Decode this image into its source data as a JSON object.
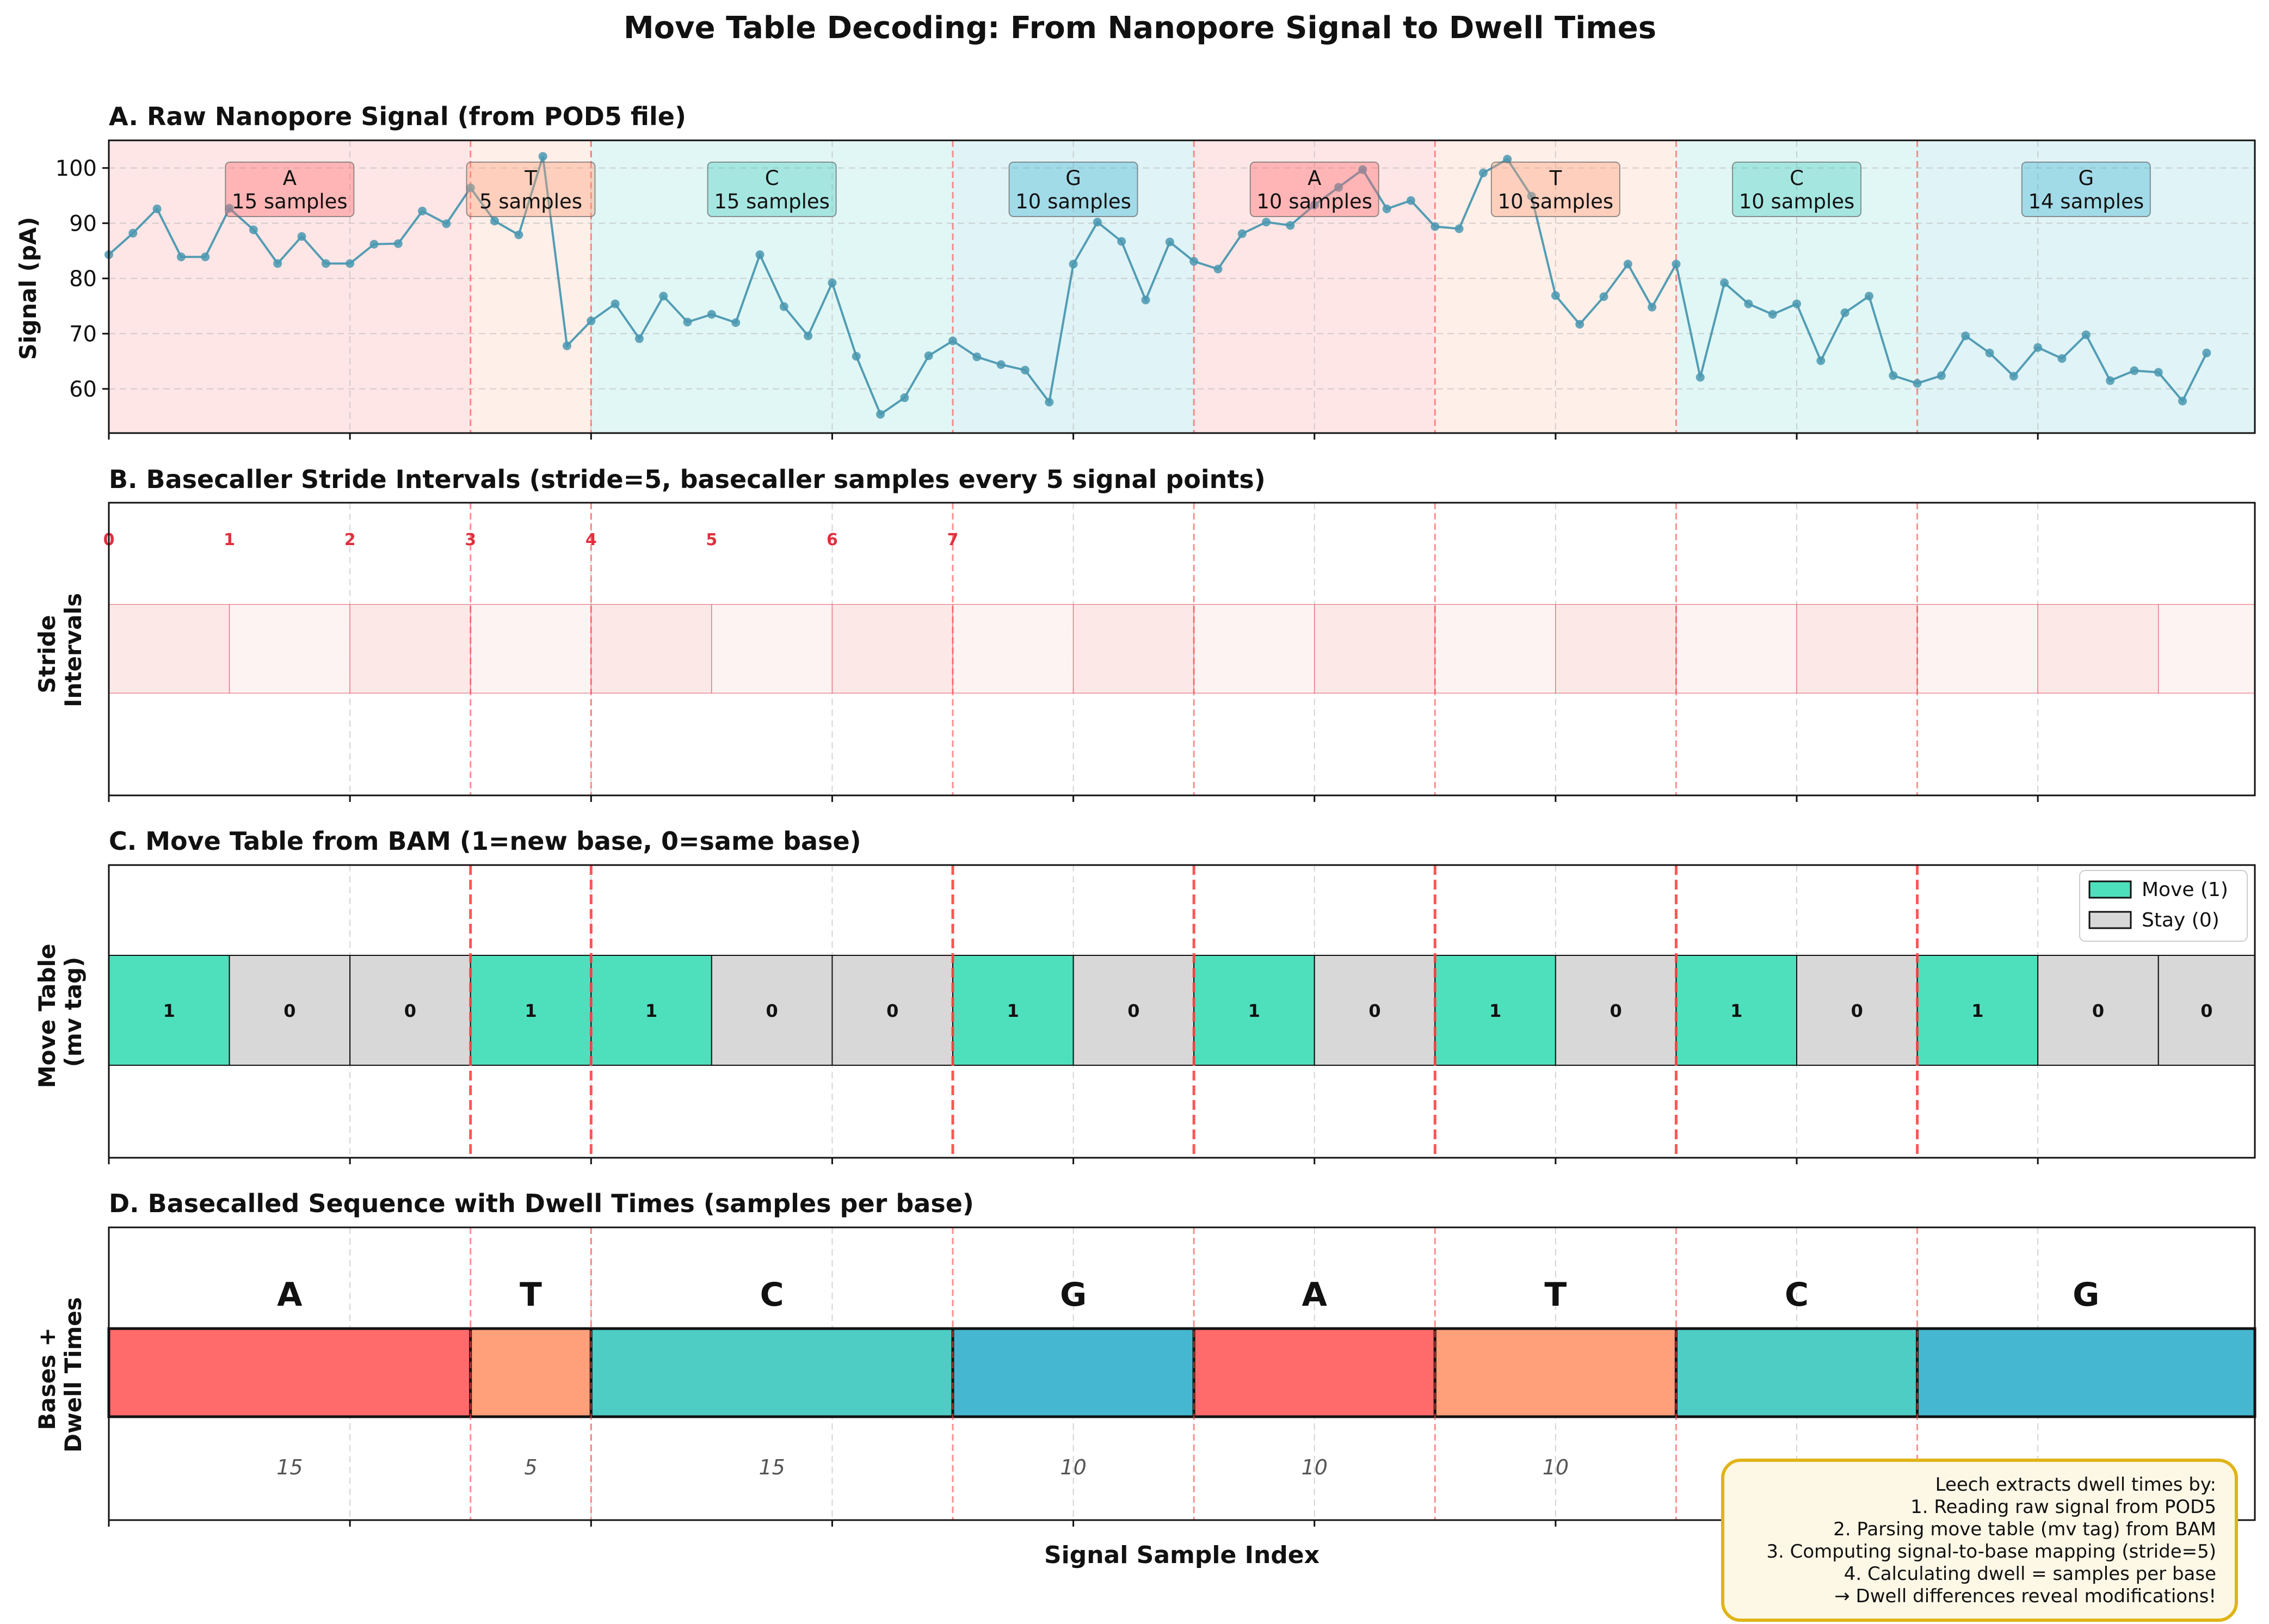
{
  "title": "Move Table Decoding: From Nanopore Signal to Dwell Times",
  "xlabel": "Signal Sample Index",
  "colors": {
    "A": "#ff6b6b",
    "T": "#ffa07a",
    "C": "#4ecdc4",
    "G": "#45b7d1",
    "signal_line": "#4a98b0",
    "move": "#4ee0bc",
    "stay": "#d8d8d8",
    "stride_edge": "#e06070",
    "stride_label": "#e03040",
    "boundary": "#ff4444",
    "note_border": "#e0b418",
    "note_fill": "#fdf7e6"
  },
  "chart_data": [
    {
      "panel": "A",
      "type": "line",
      "title": "A. Raw Nanopore Signal (from POD5 file)",
      "ylabel": "Signal (pA)",
      "xlim": [
        0,
        89
      ],
      "ylim": [
        52,
        105
      ],
      "yticks": [
        60,
        70,
        80,
        90,
        100
      ],
      "grid": true,
      "series": [
        {
          "values": [
            84.3,
            88.2,
            92.6,
            83.9,
            83.9,
            92.7,
            88.8,
            82.7,
            87.6,
            82.7,
            82.7,
            86.2,
            86.3,
            92.2,
            89.9,
            96.4,
            90.4,
            87.9,
            102.1,
            67.8,
            72.3,
            75.4,
            69.1,
            76.8,
            72.1,
            73.5,
            72.0,
            84.3,
            74.9,
            69.6,
            79.2,
            65.9,
            55.4,
            58.4,
            66.0,
            68.7,
            65.8,
            64.4,
            63.4,
            57.6,
            82.6,
            90.2,
            86.7,
            76.1,
            86.6,
            83.1,
            81.7,
            88.1,
            90.2,
            89.6,
            93.3,
            96.5,
            99.7,
            92.6,
            94.1,
            89.4,
            89.0,
            99.1,
            101.6,
            94.9,
            76.9,
            71.7,
            76.7,
            82.6,
            74.8,
            82.6,
            62.1,
            79.2,
            75.4,
            73.5,
            75.4,
            65.1,
            73.8,
            76.8,
            62.4,
            61.0,
            62.4,
            69.6,
            66.5,
            62.3,
            67.5,
            65.5,
            69.8,
            61.5,
            63.3,
            63.0,
            57.8,
            66.5
          ]
        }
      ],
      "segments": [
        {
          "base": "A",
          "start": 0,
          "end": 15,
          "label": "15 samples"
        },
        {
          "base": "T",
          "start": 15,
          "end": 20,
          "label": "5 samples"
        },
        {
          "base": "C",
          "start": 20,
          "end": 35,
          "label": "15 samples"
        },
        {
          "base": "G",
          "start": 35,
          "end": 45,
          "label": "10 samples"
        },
        {
          "base": "A",
          "start": 45,
          "end": 55,
          "label": "10 samples"
        },
        {
          "base": "T",
          "start": 55,
          "end": 65,
          "label": "10 samples"
        },
        {
          "base": "C",
          "start": 65,
          "end": 75,
          "label": "10 samples"
        },
        {
          "base": "G",
          "start": 75,
          "end": 89,
          "label": "14 samples"
        }
      ]
    },
    {
      "panel": "B",
      "type": "bar",
      "title": "B. Basecaller Stride Intervals (stride=5, basecaller samples every 5 signal points)",
      "ylabel": "Stride\nIntervals",
      "stride": 5,
      "interval_count": 18,
      "labeled_intervals": [
        0,
        1,
        2,
        3,
        4,
        5,
        6,
        7
      ]
    },
    {
      "panel": "C",
      "type": "table",
      "title": "C. Move Table from BAM (1=new base, 0=same base)",
      "ylabel": "Move Table\n(mv tag)",
      "values": [
        1,
        0,
        0,
        1,
        1,
        0,
        0,
        1,
        0,
        1,
        0,
        1,
        0,
        1,
        0,
        1,
        0,
        0
      ],
      "legend": [
        {
          "label": "Move (1)",
          "value": 1
        },
        {
          "label": "Stay (0)",
          "value": 0
        }
      ],
      "legend_position": "upper right"
    },
    {
      "panel": "D",
      "type": "bar",
      "title": "D. Basecalled Sequence with Dwell Times (samples per base)",
      "ylabel": "Bases +\nDwell Times",
      "bases": [
        {
          "base": "A",
          "dwell": 15,
          "dwell_label": "15"
        },
        {
          "base": "T",
          "dwell": 5,
          "dwell_label": "5"
        },
        {
          "base": "C",
          "dwell": 15,
          "dwell_label": "15"
        },
        {
          "base": "G",
          "dwell": 10,
          "dwell_label": "10"
        },
        {
          "base": "A",
          "dwell": 10,
          "dwell_label": "10"
        },
        {
          "base": "T",
          "dwell": 10,
          "dwell_label": "10"
        },
        {
          "base": "C",
          "dwell": 10,
          "dwell_label": ""
        },
        {
          "base": "G",
          "dwell": 14,
          "dwell_label": ""
        }
      ]
    }
  ],
  "note": {
    "lines": [
      "Leech extracts dwell times by:",
      "1. Reading raw signal from POD5",
      "2. Parsing move table (mv tag) from BAM",
      "3. Computing signal-to-base mapping (stride=5)",
      "4. Calculating dwell = samples per base",
      "→ Dwell differences reveal modifications!"
    ]
  }
}
